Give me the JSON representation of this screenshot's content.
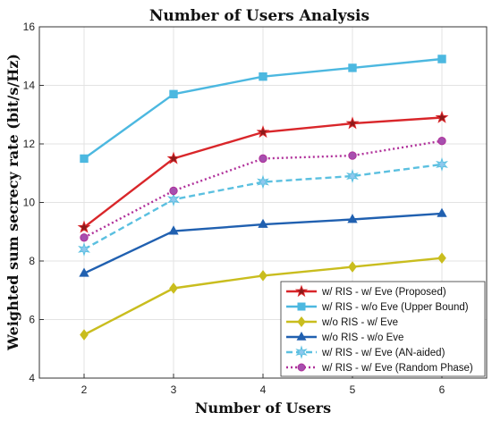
{
  "chart_data": {
    "type": "line",
    "title": "Number of Users Analysis",
    "xlabel": "Number of Users",
    "ylabel": "Weighted sum secrecy rate (bit/s/Hz)",
    "x": [
      2,
      3,
      4,
      5,
      6
    ],
    "xlim": [
      1.5,
      6.5
    ],
    "ylim": [
      4,
      16
    ],
    "xticks": [
      2,
      3,
      4,
      5,
      6
    ],
    "yticks": [
      4,
      6,
      8,
      10,
      12,
      14,
      16
    ],
    "grid": true,
    "legend_position": "bottom-right",
    "series": [
      {
        "name": "w/ RIS - w/ Eve (Proposed)",
        "values": [
          9.15,
          11.5,
          12.4,
          12.7,
          12.9
        ],
        "color": "#d9262a",
        "marker": "star",
        "marker_color": "#8b1a1a",
        "dash": "solid"
      },
      {
        "name": "w/ RIS - w/o Eve  (Upper Bound)",
        "values": [
          11.5,
          13.7,
          14.3,
          14.6,
          14.9
        ],
        "color": "#4cb8e0",
        "marker": "square",
        "marker_color": "#4cb8e0",
        "dash": "solid"
      },
      {
        "name": "w/o RIS - w/ Eve",
        "values": [
          5.48,
          7.07,
          7.5,
          7.8,
          8.1
        ],
        "color": "#c9bd1e",
        "marker": "diamond",
        "marker_color": "#c9bd1e",
        "dash": "solid"
      },
      {
        "name": "w/o RIS - w/o Eve",
        "values": [
          7.58,
          9.02,
          9.25,
          9.42,
          9.62
        ],
        "color": "#2060b0",
        "marker": "triangle",
        "marker_color": "#2060b0",
        "dash": "solid"
      },
      {
        "name": "w/ RIS - w/ Eve (AN-aided)",
        "values": [
          8.4,
          10.1,
          10.7,
          10.9,
          11.3
        ],
        "color": "#5bc0e0",
        "marker": "star6",
        "marker_color": "#8fc8ee",
        "dash": "dashed"
      },
      {
        "name": "w/ RIS - w/ Eve (Random Phase)",
        "values": [
          8.8,
          10.4,
          11.5,
          11.6,
          12.1
        ],
        "color": "#b0309a",
        "marker": "circle",
        "marker_color": "#a64fae",
        "dash": "dotted"
      }
    ]
  }
}
